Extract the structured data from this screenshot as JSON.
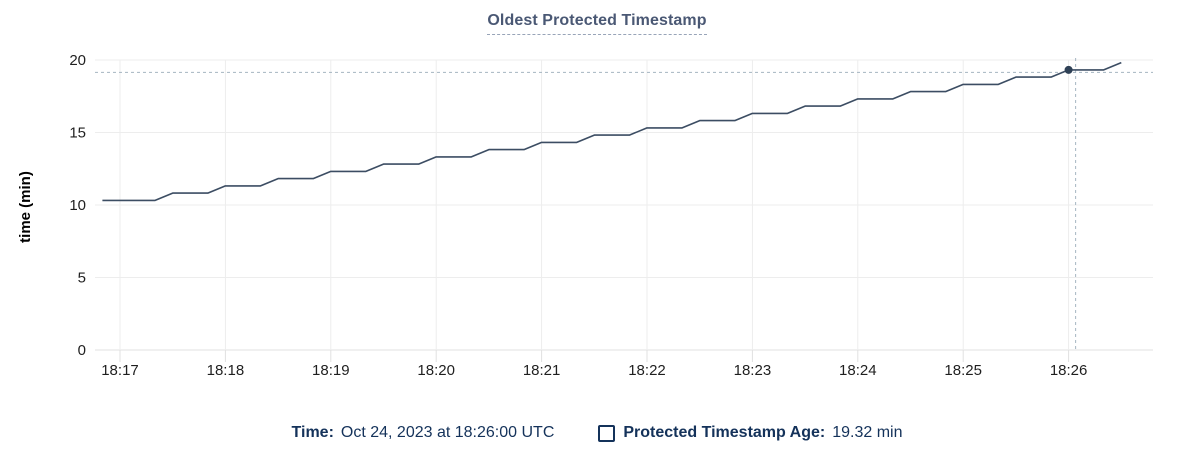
{
  "title": "Oldest Protected Timestamp",
  "colors": {
    "title": "#4a5874",
    "legend_text": "#14325a",
    "line": "#3c4d63",
    "dot": "#2f4156",
    "crosshair": "#a5b5c1",
    "grid": "#ededed",
    "grid_baseline": "#e2e2e2",
    "tick_stub": "#e0e0e0",
    "axis_text": "#1f1f1f",
    "axis_title_text": "#000000"
  },
  "legend": {
    "time_label": "Time:",
    "time_value": "Oct 24, 2023 at 18:26:00 UTC",
    "series_label": "Protected Timestamp Age:",
    "series_value": "19.32 min"
  },
  "chart_data": {
    "type": "line",
    "title": "Oldest Protected Timestamp",
    "xlabel": "",
    "ylabel": "time (min)",
    "ylim": [
      0,
      20
    ],
    "y_ticks": [
      0,
      5,
      10,
      15,
      20
    ],
    "grid": true,
    "x_tick_labels": [
      "18:17",
      "18:18",
      "18:19",
      "18:20",
      "18:21",
      "18:22",
      "18:23",
      "18:24",
      "18:25",
      "18:26"
    ],
    "x_tick_seconds": [
      0,
      60,
      120,
      180,
      240,
      300,
      360,
      420,
      480,
      540
    ],
    "x_base_time": "18:17:00",
    "hover": {
      "t": 540,
      "value": 19.32,
      "time": "18:26:00",
      "label": "19.32 min"
    },
    "cursor_seconds": 544,
    "cursor_value": 19.15,
    "series": [
      {
        "name": "Protected Timestamp Age",
        "points": [
          [
            -10,
            10.32
          ],
          [
            0,
            10.32
          ],
          [
            10,
            10.32
          ],
          [
            20,
            10.32
          ],
          [
            30,
            10.82
          ],
          [
            40,
            10.82
          ],
          [
            50,
            10.82
          ],
          [
            60,
            11.32
          ],
          [
            70,
            11.32
          ],
          [
            80,
            11.32
          ],
          [
            90,
            11.82
          ],
          [
            100,
            11.82
          ],
          [
            110,
            11.82
          ],
          [
            120,
            12.32
          ],
          [
            130,
            12.32
          ],
          [
            140,
            12.32
          ],
          [
            150,
            12.82
          ],
          [
            160,
            12.82
          ],
          [
            170,
            12.82
          ],
          [
            180,
            13.32
          ],
          [
            190,
            13.32
          ],
          [
            200,
            13.32
          ],
          [
            210,
            13.82
          ],
          [
            220,
            13.82
          ],
          [
            230,
            13.82
          ],
          [
            240,
            14.32
          ],
          [
            250,
            14.32
          ],
          [
            260,
            14.32
          ],
          [
            270,
            14.82
          ],
          [
            280,
            14.82
          ],
          [
            290,
            14.82
          ],
          [
            300,
            15.32
          ],
          [
            310,
            15.32
          ],
          [
            320,
            15.32
          ],
          [
            330,
            15.82
          ],
          [
            340,
            15.82
          ],
          [
            350,
            15.82
          ],
          [
            360,
            16.32
          ],
          [
            370,
            16.32
          ],
          [
            380,
            16.32
          ],
          [
            390,
            16.82
          ],
          [
            400,
            16.82
          ],
          [
            410,
            16.82
          ],
          [
            420,
            17.32
          ],
          [
            430,
            17.32
          ],
          [
            440,
            17.32
          ],
          [
            450,
            17.82
          ],
          [
            460,
            17.82
          ],
          [
            470,
            17.82
          ],
          [
            480,
            18.32
          ],
          [
            490,
            18.32
          ],
          [
            500,
            18.32
          ],
          [
            510,
            18.82
          ],
          [
            520,
            18.82
          ],
          [
            530,
            18.82
          ],
          [
            540,
            19.32
          ],
          [
            550,
            19.32
          ],
          [
            560,
            19.32
          ],
          [
            570,
            19.82
          ]
        ]
      }
    ]
  }
}
